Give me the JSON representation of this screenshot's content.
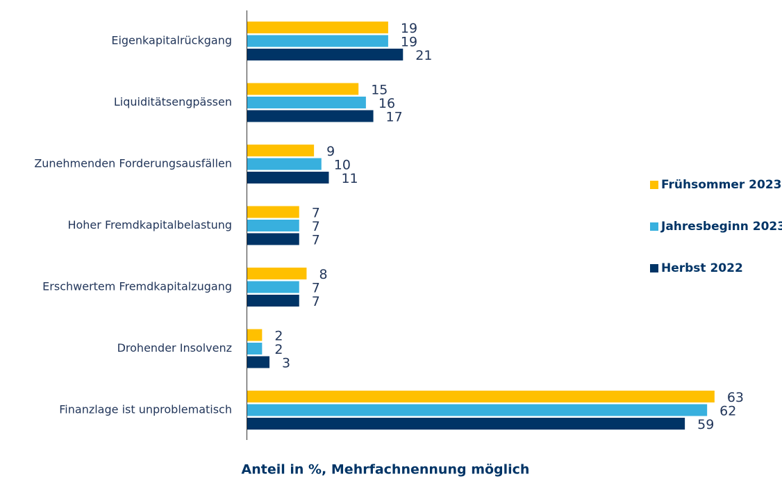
{
  "chart_data": {
    "type": "hbar",
    "categories": [
      "Eigenkapitalrückgang",
      "Liquiditätsengpässen",
      "Zunehmenden Forderungsausfällen",
      "Hoher Fremdkapitalbelastung",
      "Erschwertem Fremdkapitalzugang",
      "Drohender Insolvenz",
      "Finanzlage ist unproblematisch"
    ],
    "series": [
      {
        "name": "Frühsommer 2023",
        "color": "#ffc000",
        "values": [
          19,
          15,
          9,
          7,
          8,
          2,
          63
        ]
      },
      {
        "name": "Jahresbeginn 2023",
        "color": "#38b0de",
        "values": [
          19,
          16,
          10,
          7,
          7,
          2,
          62
        ]
      },
      {
        "name": "Herbst 2022",
        "color": "#003466",
        "values": [
          21,
          17,
          11,
          7,
          7,
          3,
          59
        ]
      }
    ],
    "xlabel": "Anteil in %, Mehrfachnennung möglich",
    "xlim": [
      0,
      70
    ],
    "legend": "right"
  }
}
